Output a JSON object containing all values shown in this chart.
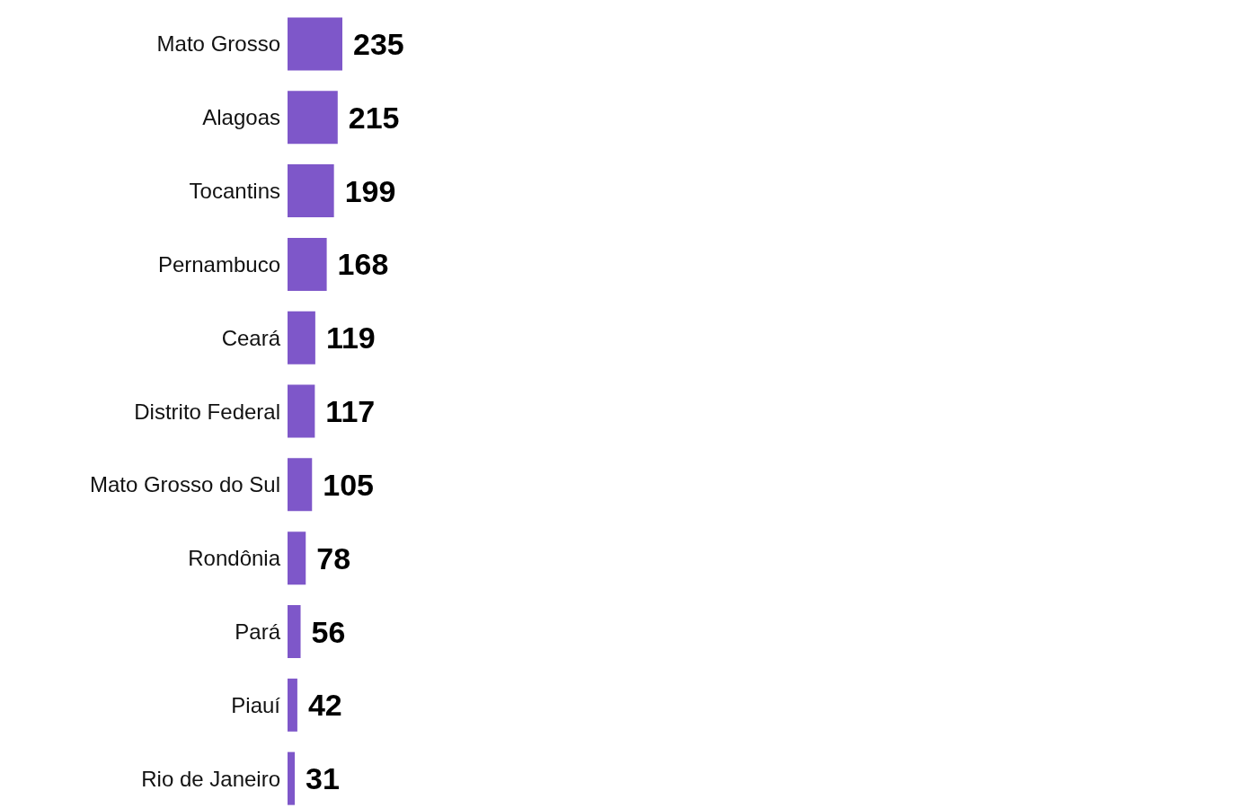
{
  "chart_data": {
    "type": "bar",
    "orientation": "horizontal",
    "categories": [
      "Mato Grosso",
      "Alagoas",
      "Tocantins",
      "Pernambuco",
      "Ceará",
      "Distrito Federal",
      "Mato Grosso do Sul",
      "Rondônia",
      "Pará",
      "Piauí",
      "Rio de Janeiro"
    ],
    "values": [
      235,
      215,
      199,
      168,
      119,
      117,
      105,
      78,
      56,
      42,
      31
    ],
    "color": "#7e57c9",
    "data_labels": true
  }
}
